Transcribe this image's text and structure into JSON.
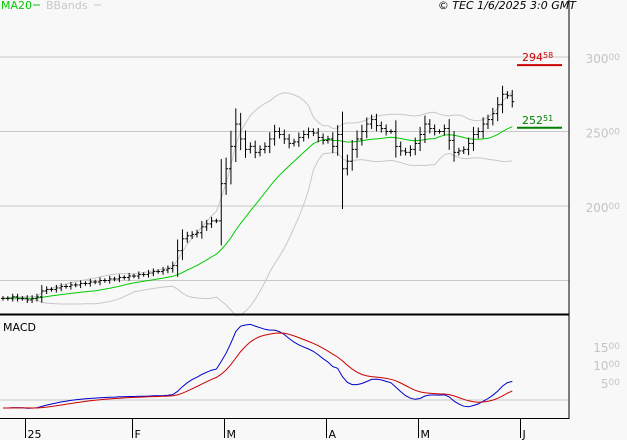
{
  "header": {
    "legend_ma": "MA20",
    "legend_bb": "BBands",
    "credit": "© TEC 1/6/2025 3:0 GMT"
  },
  "colors": {
    "ma20": "#00cc00",
    "bbands": "#c8c8c8",
    "bars": "#000000",
    "macd": "#0000cc",
    "signal": "#cc0000",
    "resistance": "#cc0000",
    "support": "#008000",
    "axis_labels": "#c4c4c4"
  },
  "chart_data": [
    {
      "type": "ohlc",
      "title": "",
      "indicators": [
        "MA20",
        "BBands"
      ],
      "y_ticks": [
        {
          "value": 300,
          "int": "300",
          "dec": "00"
        },
        {
          "value": 250,
          "int": "250",
          "dec": "00"
        },
        {
          "value": 200,
          "int": "200",
          "dec": "00"
        }
      ],
      "ylim": [
        130,
        310
      ],
      "grid": true,
      "x_ticks": [
        {
          "label": "25",
          "index": 5
        },
        {
          "label": "F",
          "index": 27
        },
        {
          "label": "M",
          "index": 46
        },
        {
          "label": "A",
          "index": 67
        },
        {
          "label": "M",
          "index": 86
        },
        {
          "label": "J",
          "index": 107
        }
      ],
      "close": [
        138,
        138,
        139,
        138,
        138,
        137,
        138,
        139,
        143,
        144,
        144,
        145,
        146,
        146,
        147,
        147,
        148,
        148,
        149,
        149,
        150,
        150,
        151,
        151,
        152,
        152,
        153,
        153,
        154,
        154,
        155,
        156,
        156,
        157,
        158,
        160,
        170,
        178,
        180,
        181,
        182,
        186,
        188,
        190,
        190,
        215,
        225,
        240,
        255,
        245,
        238,
        240,
        236,
        238,
        240,
        245,
        250,
        248,
        245,
        242,
        243,
        246,
        248,
        250,
        249,
        246,
        244,
        245,
        240,
        248,
        225,
        230,
        238,
        245,
        250,
        255,
        258,
        254,
        252,
        250,
        250,
        240,
        237,
        236,
        238,
        242,
        248,
        255,
        252,
        250,
        250,
        252,
        244,
        236,
        237,
        238,
        242,
        248,
        250,
        255,
        258,
        262,
        268,
        275,
        274,
        270
      ],
      "levels": [
        {
          "name": "resistance",
          "value": 294.58,
          "int": "294",
          "dec": "58"
        },
        {
          "name": "support",
          "value": 252.51,
          "int": "252",
          "dec": "51"
        }
      ]
    },
    {
      "type": "line",
      "title": "MACD",
      "series": [
        "MACD",
        "Signal"
      ],
      "y_ticks": [
        {
          "value": 15,
          "int": "15",
          "dec": "00"
        },
        {
          "value": 10,
          "int": "10",
          "dec": "00"
        },
        {
          "value": 5,
          "int": "5",
          "dec": "00"
        }
      ],
      "grid": true
    }
  ]
}
